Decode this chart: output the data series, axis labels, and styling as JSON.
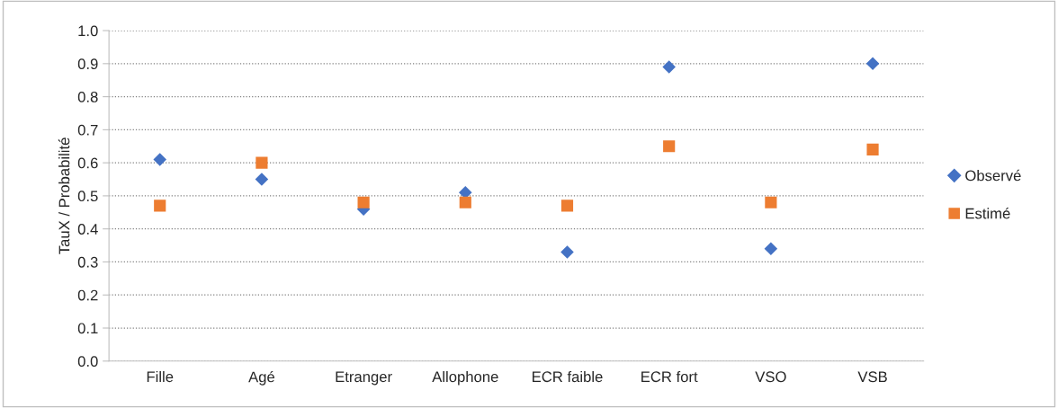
{
  "chart_data": {
    "type": "scatter",
    "ylabel": "TauX / Probabilité",
    "categories": [
      "Fille",
      "Agé",
      "Etranger",
      "Allophone",
      "ECR faible",
      "ECR fort",
      "VSO",
      "VSB"
    ],
    "series": [
      {
        "name": "Observé",
        "color": "#4472c4",
        "marker": "diamond",
        "values": [
          0.61,
          0.55,
          0.46,
          0.51,
          0.33,
          0.89,
          0.34,
          0.9
        ]
      },
      {
        "name": "Estimé",
        "color": "#ed7d31",
        "marker": "square",
        "values": [
          0.47,
          0.6,
          0.48,
          0.48,
          0.47,
          0.65,
          0.48,
          0.64
        ]
      }
    ],
    "ylim": [
      0,
      1.0
    ],
    "yticks": [
      {
        "value": 0,
        "label": "0.0"
      },
      0.1,
      0.2,
      0.3,
      0.4,
      0.5,
      0.6,
      0.7,
      0.8,
      0.9,
      {
        "value": 1.0,
        "label": "1.0"
      }
    ],
    "grid": "y",
    "legend": "right"
  }
}
